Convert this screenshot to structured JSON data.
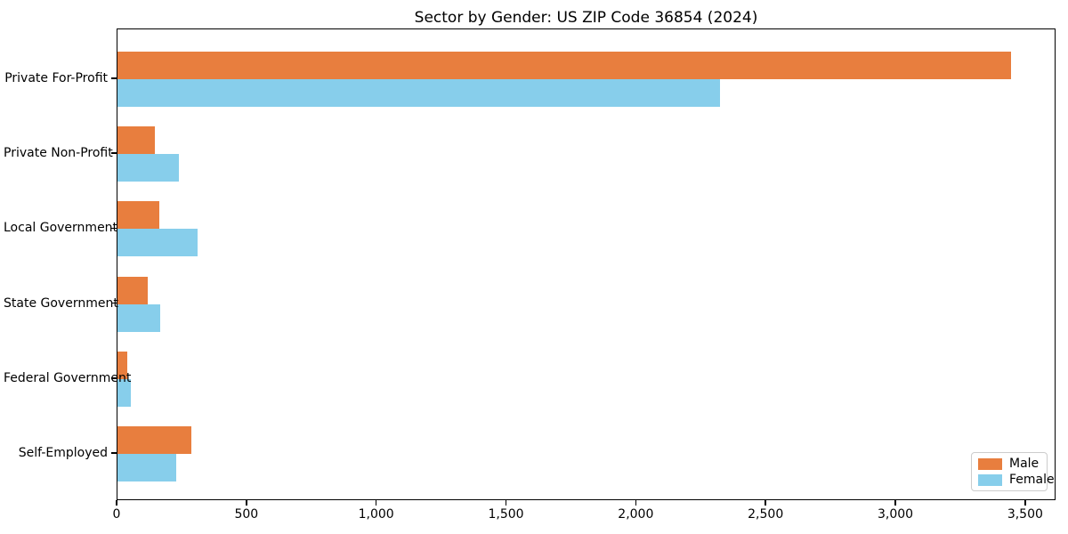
{
  "chart_data": {
    "type": "bar",
    "orientation": "horizontal",
    "title": "Sector by Gender: US ZIP Code 36854 (2024)",
    "categories": [
      "Private For-Profit",
      "Private Non-Profit",
      "Local Government",
      "State Government",
      "Federal Government",
      "Self-Employed"
    ],
    "series": [
      {
        "name": "Male",
        "color": "#e87e3e",
        "values": [
          3443,
          145,
          162,
          117,
          39,
          285
        ]
      },
      {
        "name": "Female",
        "color": "#87ceeb",
        "values": [
          2321,
          237,
          307,
          166,
          50,
          225
        ]
      }
    ],
    "xlabel": "",
    "ylabel": "",
    "xlim": [
      0,
      3617
    ],
    "xticks": [
      0,
      500,
      1000,
      1500,
      2000,
      2500,
      3000,
      3500
    ],
    "xtick_labels": [
      "0",
      "500",
      "1,000",
      "1,500",
      "2,000",
      "2,500",
      "3,000",
      "3,500"
    ],
    "legend_position": "lower right",
    "grid": false,
    "background_color": "#ffffff",
    "axis_color": "#000000"
  }
}
